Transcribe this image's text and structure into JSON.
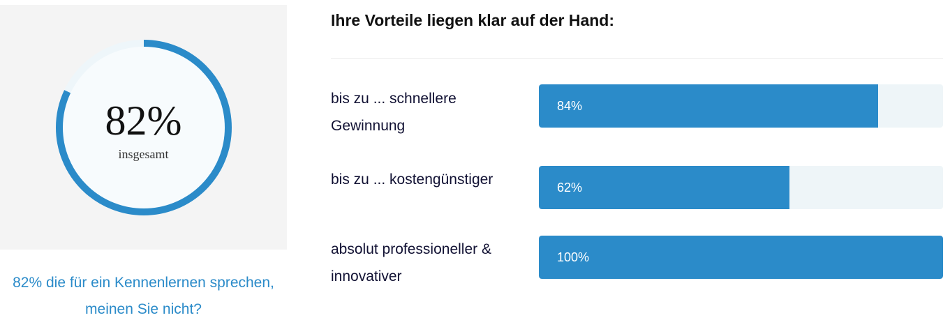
{
  "gauge": {
    "value": 82,
    "value_text": "82%",
    "caption": "insgesamt",
    "note": "82% die für ein Kennenlernen sprechen, meinen Sie nicht?",
    "color": "#2b8bc9",
    "track_color": "#eef6fa",
    "panel_color": "#f4f4f4"
  },
  "heading": "Ihre Vorteile liegen klar auf der Hand:",
  "bars": [
    {
      "label": "bis zu ... schnellere Gewinnung",
      "value": 84,
      "value_text": "84%"
    },
    {
      "label": "bis zu ... kostengünstiger",
      "value": 62,
      "value_text": "62%"
    },
    {
      "label": "absolut professioneller & innovativer",
      "value": 100,
      "value_text": "100%"
    }
  ],
  "colors": {
    "accent": "#2b8bc9",
    "track": "#eef5f8",
    "text": "#111133"
  }
}
